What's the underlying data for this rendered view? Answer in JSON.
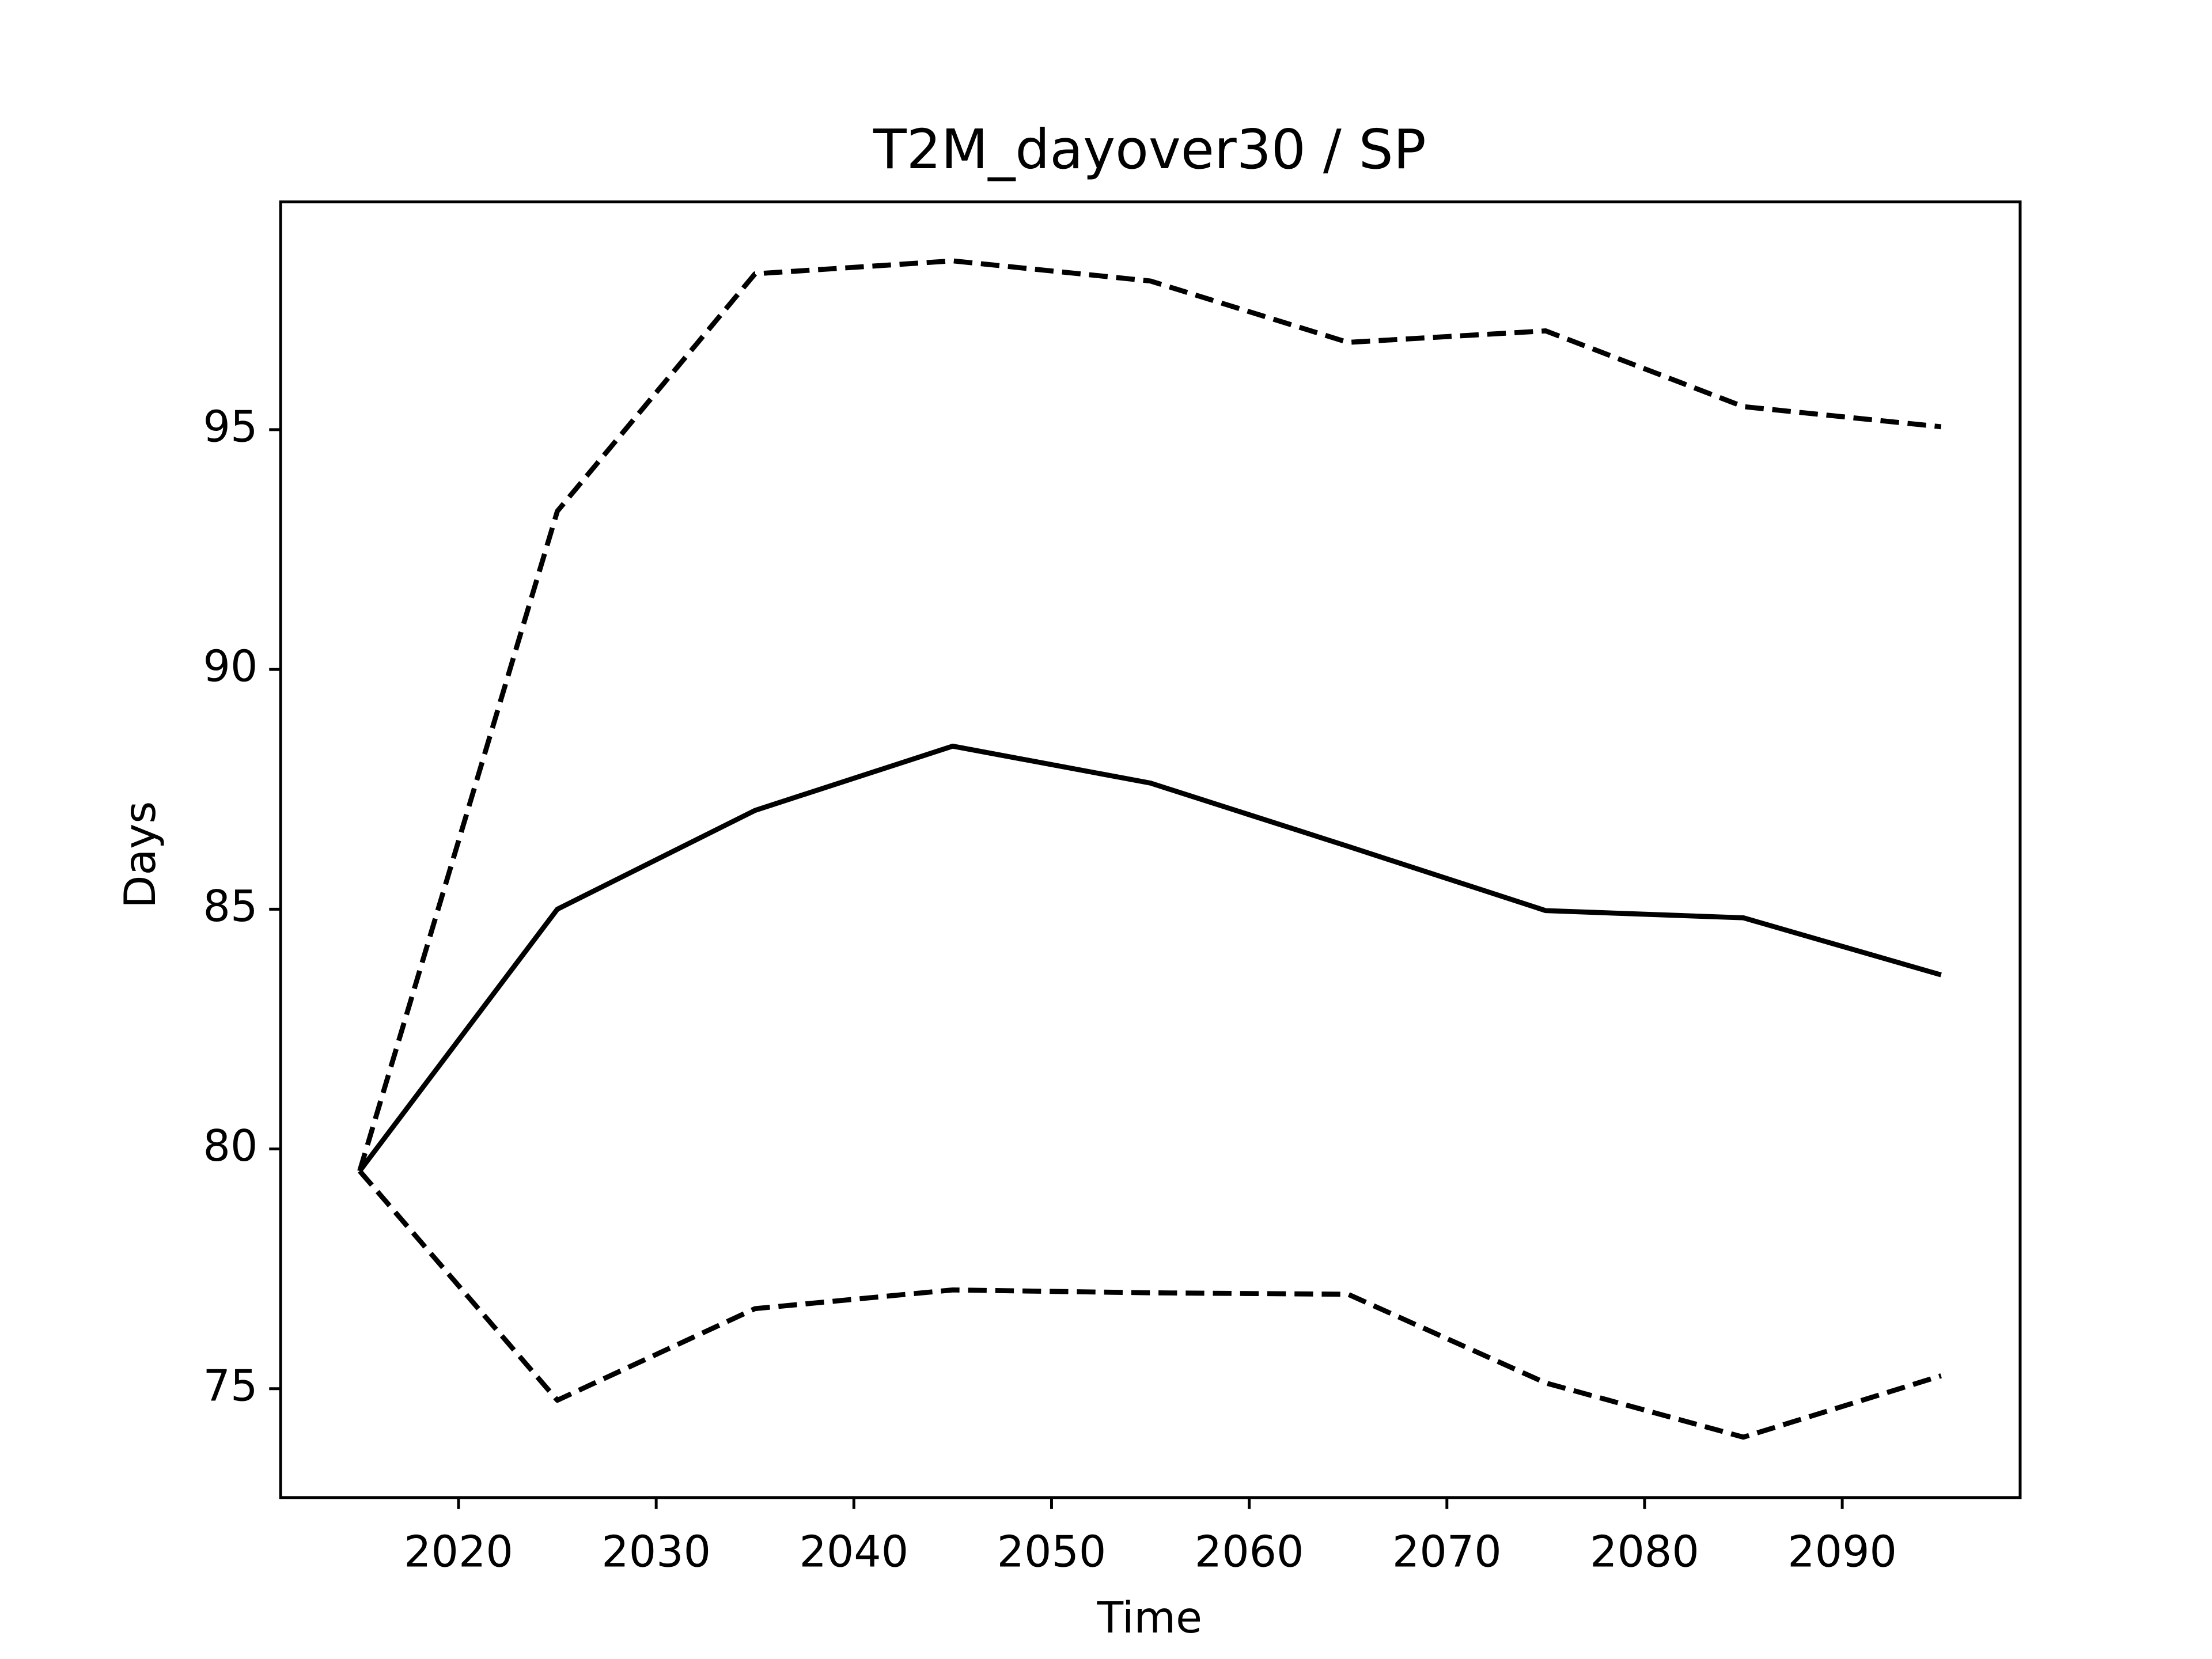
{
  "chart_data": {
    "type": "line",
    "title": "T2M_dayover30 / SP",
    "x_label": "Time",
    "y_label": "Days",
    "x": [
      2015,
      2025,
      2035,
      2045,
      2055,
      2065,
      2075,
      2085,
      2095
    ],
    "series": [
      {
        "color": "#000000",
        "style": "solid",
        "values": [
          79.54,
          85.0,
          87.06,
          88.4,
          87.63,
          86.31,
          84.97,
          84.82,
          83.63
        ]
      },
      {
        "color": "#000000",
        "style": "dashed",
        "values": [
          79.54,
          93.3,
          98.25,
          98.52,
          98.1,
          96.82,
          97.06,
          95.48,
          95.06
        ]
      },
      {
        "color": "#000000",
        "style": "dashed",
        "values": [
          79.54,
          74.76,
          76.67,
          77.06,
          77.0,
          76.97,
          75.12,
          73.99,
          75.27
        ]
      }
    ],
    "xlim": [
      2011,
      2099
    ],
    "ylim": [
      72.73,
      99.75
    ],
    "xticks": [
      2020,
      2030,
      2040,
      2050,
      2060,
      2070,
      2080,
      2090
    ],
    "yticks": [
      75,
      80,
      85,
      90,
      95
    ],
    "grid": false
  }
}
